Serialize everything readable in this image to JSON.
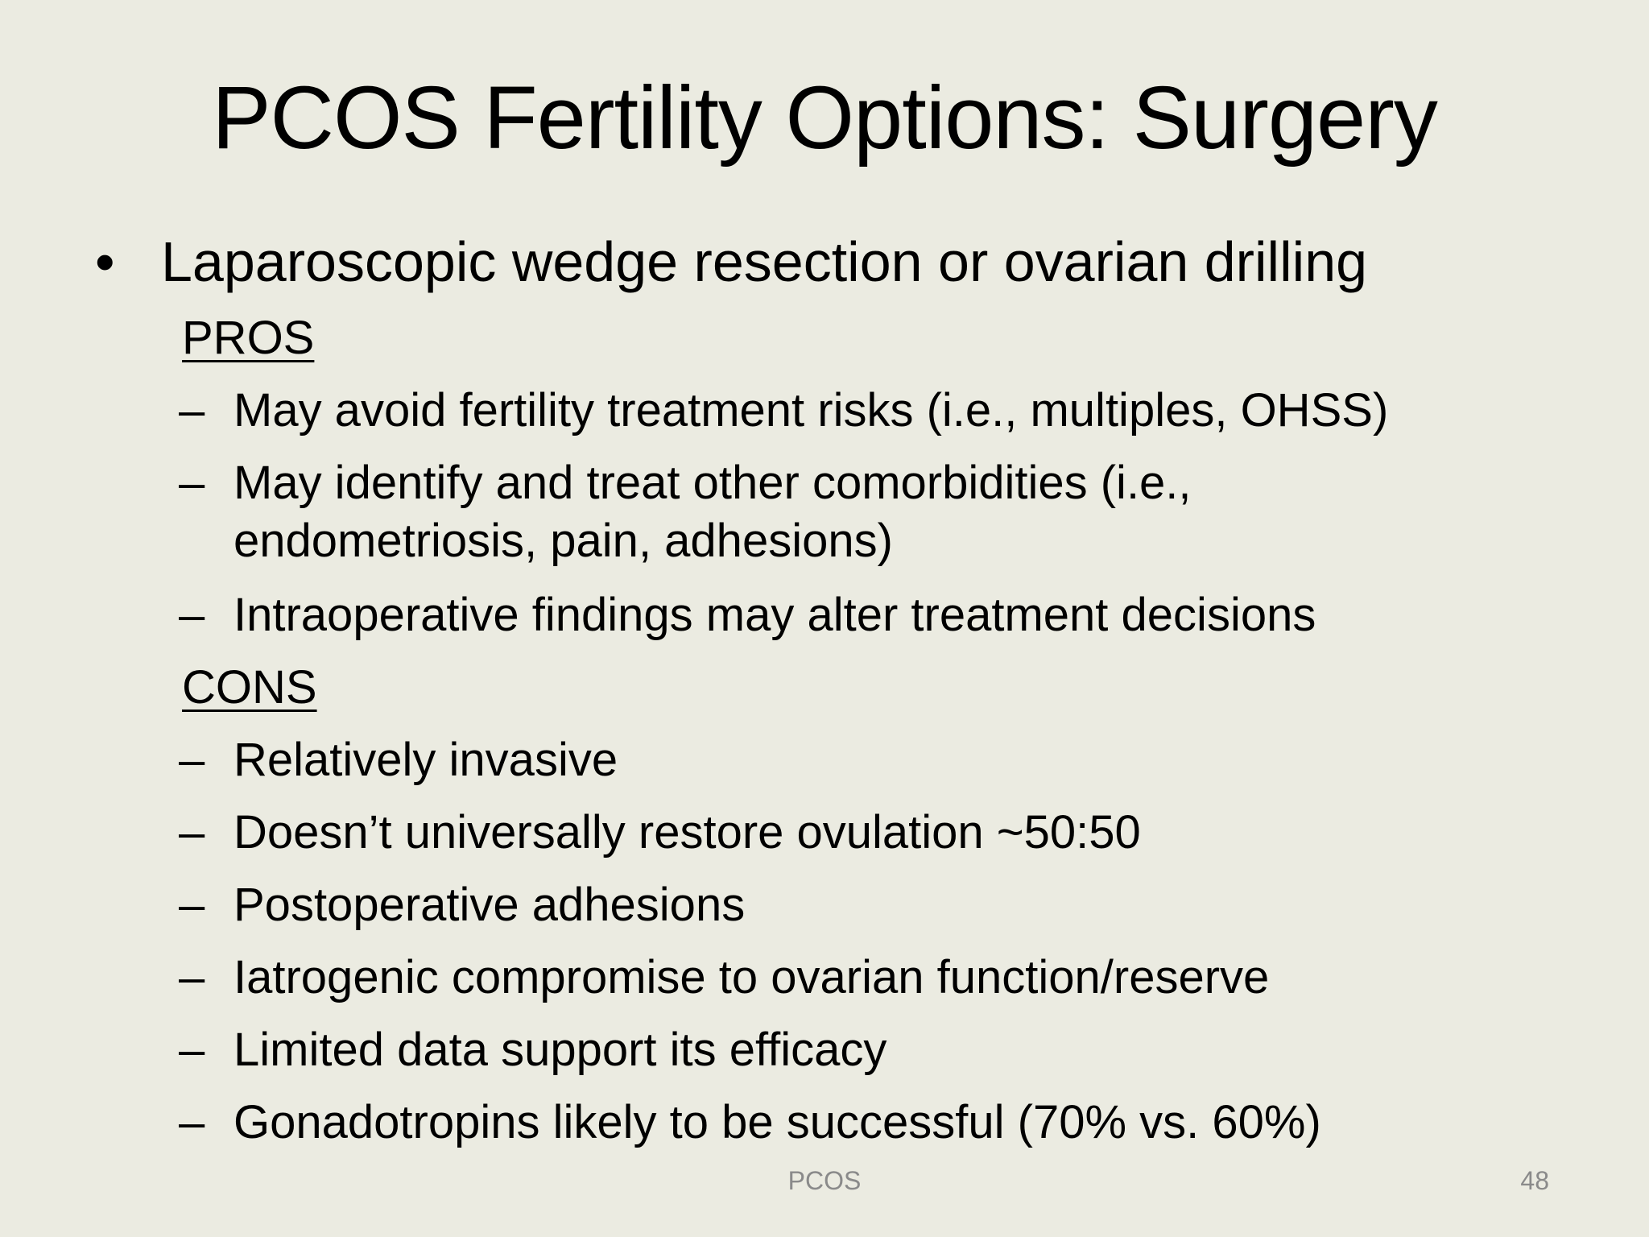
{
  "title": "PCOS Fertility Options: Surgery",
  "bullet": {
    "marker": "•",
    "text": "Laparoscopic wedge resection or ovarian drilling"
  },
  "pros": {
    "heading": "PROS",
    "items": [
      {
        "dash": "–",
        "lines": [
          "May avoid fertility treatment risks (i.e., multiples, OHSS)"
        ]
      },
      {
        "dash": "–",
        "lines": [
          "May identify and treat other comorbidities (i.e.,",
          "endometriosis, pain, adhesions)"
        ]
      },
      {
        "dash": "–",
        "lines": [
          "Intraoperative findings may alter treatment decisions"
        ]
      }
    ]
  },
  "cons": {
    "heading": "CONS",
    "items": [
      {
        "dash": "–",
        "lines": [
          "Relatively invasive"
        ]
      },
      {
        "dash": "–",
        "lines": [
          "Doesn’t universally restore ovulation ~50:50"
        ]
      },
      {
        "dash": "–",
        "lines": [
          "Postoperative adhesions"
        ]
      },
      {
        "dash": "–",
        "lines": [
          "Iatrogenic compromise to ovarian function/reserve"
        ]
      },
      {
        "dash": "–",
        "lines": [
          "Limited data support its efficacy"
        ]
      },
      {
        "dash": "–",
        "lines": [
          "Gonadotropins likely to be successful (70% vs. 60%)"
        ]
      }
    ]
  },
  "footer": {
    "label": "PCOS",
    "page_number": "48"
  }
}
